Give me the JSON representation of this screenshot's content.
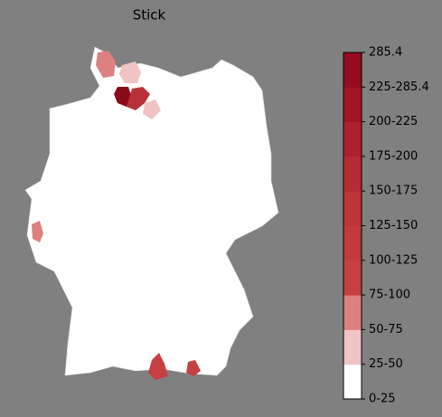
{
  "title": "Stick",
  "legend": {
    "labels": [
      "0-25",
      "25-50",
      "50-75",
      "75-100",
      "100-125",
      "125-150",
      "150-175",
      "175-200",
      "200-225",
      "225-285.4",
      "285.4"
    ],
    "colors": [
      "#ffffff",
      "#f0c4c4",
      "#dc8080",
      "#c63f43",
      "#c23a3f",
      "#bd343a",
      "#b72c34",
      "#ae202c",
      "#a21424",
      "#960c1f"
    ]
  }
}
